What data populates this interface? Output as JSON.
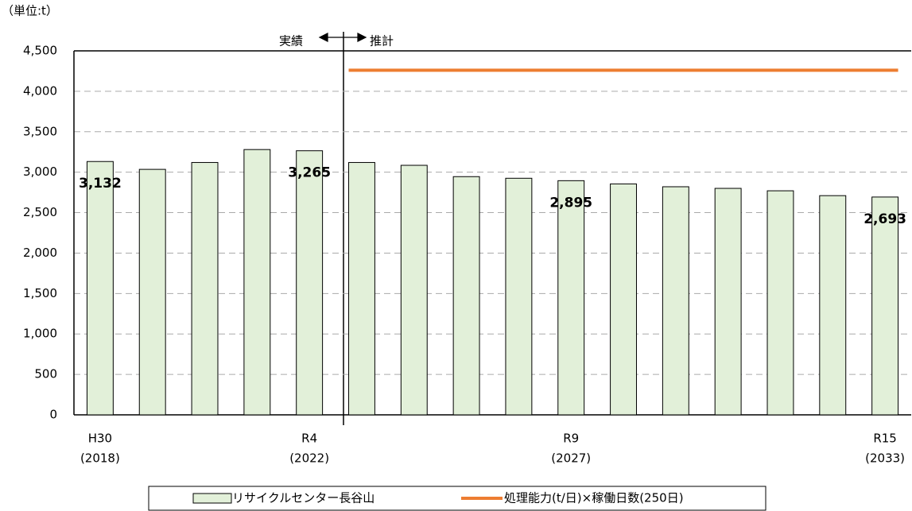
{
  "chart_data": {
    "type": "bar",
    "unit_label": "（単位:t）",
    "annotations": {
      "actual": "実績",
      "forecast": "推計"
    },
    "categories": [
      "H30",
      null,
      null,
      null,
      "R4",
      null,
      null,
      null,
      null,
      "R9",
      null,
      null,
      null,
      null,
      null,
      "R15"
    ],
    "category_sublabels": [
      "(2018)",
      null,
      null,
      null,
      "(2022)",
      null,
      null,
      null,
      null,
      "(2027)",
      null,
      null,
      null,
      null,
      null,
      "(2033)"
    ],
    "series": [
      {
        "name": "リサイクルセンター長谷山",
        "type": "bar",
        "color": "#e2f0d9",
        "values": [
          3132,
          3035,
          3120,
          3280,
          3265,
          3120,
          3085,
          2945,
          2925,
          2895,
          2855,
          2820,
          2800,
          2770,
          2710,
          2693
        ],
        "value_labels": [
          "3,132",
          null,
          null,
          null,
          "3,265",
          null,
          null,
          null,
          null,
          "2,895",
          null,
          null,
          null,
          null,
          null,
          "2,693"
        ]
      },
      {
        "name": "処理能力(t/日)×稼働日数(250日)",
        "type": "line",
        "color": "#ed7d31",
        "values": [
          null,
          null,
          null,
          null,
          null,
          4260,
          4260,
          4260,
          4260,
          4260,
          4260,
          4260,
          4260,
          4260,
          4260,
          4260
        ]
      }
    ],
    "ylim": [
      0,
      4500
    ],
    "yticks": [
      0,
      500,
      {
        "value": 1000,
        "label": "1,000"
      },
      {
        "value": 1500,
        "label": "1,500"
      },
      {
        "value": 2000,
        "label": "2,000"
      },
      {
        "value": 2500,
        "label": "2,500"
      },
      {
        "value": 3000,
        "label": "3,000"
      },
      {
        "value": 3500,
        "label": "3,500"
      },
      {
        "value": 4000,
        "label": "4,000"
      },
      {
        "value": 4500,
        "label": "4,500"
      }
    ],
    "grid": true
  }
}
